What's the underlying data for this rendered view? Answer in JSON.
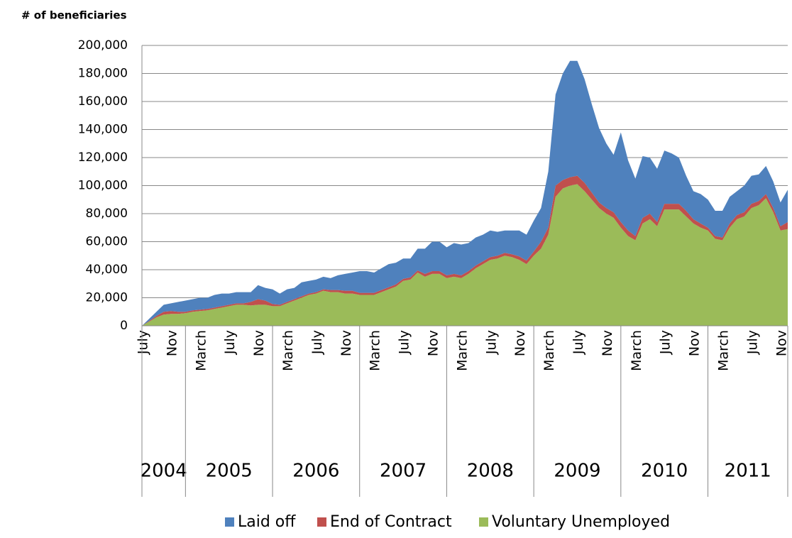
{
  "chart_data": {
    "type": "stacked_area",
    "y_label": "# of beneficiaries",
    "categories": [
      "July",
      null,
      null,
      null,
      "Nov",
      null,
      null,
      null,
      "March",
      null,
      null,
      null,
      "July",
      null,
      null,
      null,
      "Nov",
      null,
      null,
      null,
      "March",
      null,
      null,
      null,
      "July",
      null,
      null,
      null,
      "Nov",
      null,
      null,
      null,
      "March",
      null,
      null,
      null,
      "July",
      null,
      null,
      null,
      "Nov",
      null,
      null,
      null,
      "March",
      null,
      null,
      null,
      "July",
      null,
      null,
      null,
      "Nov",
      null,
      null,
      null,
      "March",
      null,
      null,
      null,
      "July",
      null,
      null,
      null,
      "Nov",
      null,
      null,
      null,
      "March",
      null,
      null,
      null,
      "July",
      null,
      null,
      null,
      "Nov",
      null,
      null,
      null,
      "March",
      null,
      null,
      null,
      "July",
      null,
      null,
      null,
      "Nov",
      null
    ],
    "groups": [
      {
        "label": "2004",
        "size": 6
      },
      {
        "label": "2005",
        "size": 12
      },
      {
        "label": "2006",
        "size": 12
      },
      {
        "label": "2007",
        "size": 12
      },
      {
        "label": "2008",
        "size": 12
      },
      {
        "label": "2009",
        "size": 12
      },
      {
        "label": "2010",
        "size": 12
      },
      {
        "label": "2011",
        "size": 12
      }
    ],
    "series": [
      {
        "name": "Laid off",
        "color": "#4f81bd",
        "values": [
          0,
          1500,
          3000,
          5000,
          5500,
          7000,
          8000,
          8000,
          8500,
          8000,
          9000,
          9000,
          8000,
          8000,
          8000,
          7000,
          10000,
          9000,
          10500,
          8000,
          9000,
          8000,
          10000,
          9000,
          9000,
          9000,
          8500,
          10500,
          12000,
          13000,
          15500,
          15500,
          14500,
          15500,
          16500,
          15500,
          14500,
          13500,
          15500,
          18000,
          21000,
          21000,
          20000,
          22000,
          22000,
          20000,
          20000,
          19000,
          19000,
          17000,
          16000,
          17000,
          18500,
          18500,
          22000,
          24000,
          40000,
          65000,
          76000,
          83000,
          82000,
          74000,
          63000,
          53000,
          46000,
          41000,
          64000,
          50000,
          41000,
          44000,
          40000,
          38000,
          38000,
          36000,
          33000,
          25000,
          20000,
          21000,
          20000,
          18000,
          19000,
          19000,
          17000,
          19000,
          20000,
          19000,
          20000,
          19000,
          17000,
          23000
        ]
      },
      {
        "name": "End of Contract",
        "color": "#c0504d",
        "values": [
          0,
          500,
          1000,
          2000,
          2000,
          1500,
          1000,
          1000,
          1000,
          1000,
          1000,
          1000,
          1000,
          1000,
          1000,
          2500,
          4000,
          3000,
          1500,
          1000,
          1000,
          1000,
          1000,
          1000,
          1000,
          1000,
          1500,
          1500,
          2000,
          2000,
          1500,
          1500,
          1500,
          1500,
          1500,
          1500,
          1500,
          1500,
          1500,
          2000,
          2000,
          2000,
          2000,
          2000,
          2000,
          2000,
          2000,
          2000,
          2000,
          2000,
          2000,
          2000,
          2500,
          2500,
          3000,
          5000,
          5000,
          8000,
          6000,
          6000,
          6000,
          6000,
          5000,
          4000,
          4000,
          4000,
          4000,
          4000,
          3000,
          4000,
          4000,
          3000,
          4000,
          4000,
          4000,
          4000,
          3000,
          3000,
          2000,
          2000,
          2000,
          3000,
          3000,
          3000,
          3000,
          3000,
          3000,
          3000,
          3000,
          5000
        ]
      },
      {
        "name": "Voluntary Unemployed",
        "color": "#9bbb59",
        "values": [
          0,
          3000,
          6000,
          8000,
          8500,
          8500,
          9000,
          10000,
          10500,
          11000,
          12000,
          13000,
          14000,
          15000,
          15000,
          14500,
          15000,
          15000,
          14000,
          14000,
          16000,
          18000,
          20000,
          22000,
          23000,
          25000,
          24000,
          24000,
          23000,
          23000,
          22000,
          22000,
          22000,
          24000,
          26000,
          28000,
          32000,
          33000,
          38000,
          35000,
          37000,
          37000,
          34000,
          35000,
          34000,
          37000,
          41000,
          44000,
          47000,
          48000,
          50000,
          49000,
          47000,
          44000,
          50000,
          55000,
          65000,
          92000,
          98000,
          100000,
          101000,
          96000,
          90000,
          84000,
          80000,
          77000,
          70000,
          64000,
          61000,
          73000,
          76000,
          71000,
          83000,
          83000,
          83000,
          78000,
          73000,
          70000,
          68000,
          62000,
          61000,
          70000,
          76000,
          78000,
          84000,
          86000,
          91000,
          81000,
          68000,
          69000
        ]
      }
    ],
    "ylim": [
      0,
      200000
    ],
    "yticks": [
      0,
      {
        "value": 20000,
        "label": "20,000"
      },
      {
        "value": 40000,
        "label": "40,000"
      },
      {
        "value": 60000,
        "label": "60,000"
      },
      {
        "value": 80000,
        "label": "80,000"
      },
      {
        "value": 100000,
        "label": "100,000"
      },
      {
        "value": 120000,
        "label": "120,000"
      },
      {
        "value": 140000,
        "label": "140,000"
      },
      {
        "value": 160000,
        "label": "160,000"
      },
      {
        "value": 180000,
        "label": "180,000"
      },
      {
        "value": 200000,
        "label": "200,000"
      }
    ],
    "grid": true,
    "legend": "bottom"
  }
}
